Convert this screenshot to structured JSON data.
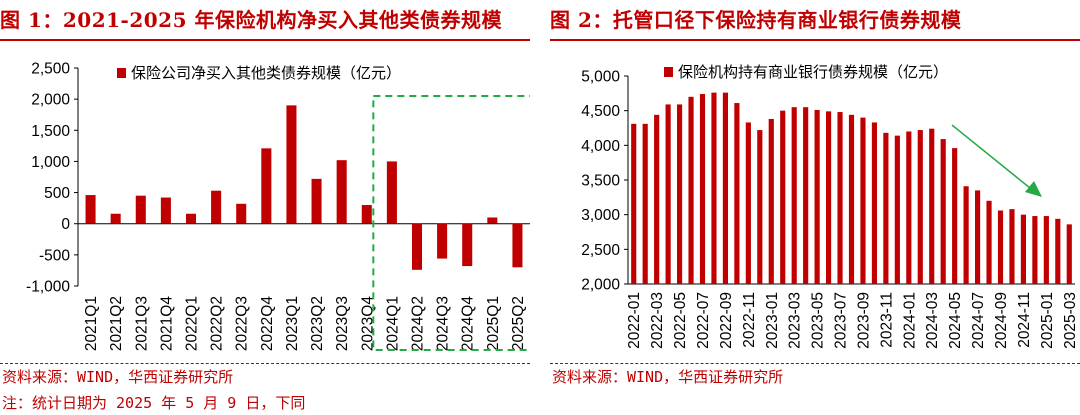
{
  "figures": [
    {
      "title": "图 1：2021-2025 年保险机构净买入其他类债券规模",
      "source": "资料来源：WIND，华西证券研究所",
      "note": "注：统计日期为 2025 年 5 月 9 日，下同"
    },
    {
      "title": "图 2：托管口径下保险持有商业银行债券规模",
      "source": "资料来源：WIND，华西证券研究所"
    }
  ],
  "colors": {
    "bar": "#c00000",
    "highlight_box": "#22aa44",
    "arrow": "#22aa44",
    "title": "#c00000"
  },
  "chart_data": [
    {
      "type": "bar",
      "legend": "保险公司净买入其他类债券规模（亿元）",
      "legend_position": "top",
      "categories": [
        "2021Q1",
        "2021Q2",
        "2021Q3",
        "2021Q4",
        "2022Q1",
        "2022Q2",
        "2022Q3",
        "2022Q4",
        "2023Q1",
        "2023Q2",
        "2023Q3",
        "2023Q4",
        "2024Q1",
        "2024Q2",
        "2024Q3",
        "2024Q4",
        "2025Q1",
        "2025Q2"
      ],
      "values": [
        460,
        160,
        450,
        420,
        160,
        530,
        320,
        1210,
        1900,
        720,
        1020,
        300,
        1000,
        -740,
        -560,
        -680,
        100,
        -700
      ],
      "ylim": [
        -1000,
        2500
      ],
      "yticks": [
        -1000,
        -500,
        0,
        500,
        1000,
        1500,
        2000,
        2500
      ],
      "ytick_labels": [
        "-1,000",
        "-500",
        "0",
        "500",
        "1,000",
        "1,500",
        "2,000",
        "2,500"
      ],
      "highlight_categories": [
        "2024Q1",
        "2025Q2"
      ],
      "grid": false
    },
    {
      "type": "bar",
      "legend": "保险机构持有商业银行债券规模（亿元）",
      "legend_position": "top",
      "x": [
        "2022-01",
        "2022-02",
        "2022-03",
        "2022-04",
        "2022-05",
        "2022-06",
        "2022-07",
        "2022-08",
        "2022-09",
        "2022-10",
        "2022-11",
        "2022-12",
        "2023-01",
        "2023-02",
        "2023-03",
        "2023-04",
        "2023-05",
        "2023-06",
        "2023-07",
        "2023-08",
        "2023-09",
        "2023-10",
        "2023-11",
        "2023-12",
        "2024-01",
        "2024-02",
        "2024-03",
        "2024-04",
        "2024-05",
        "2024-06",
        "2024-07",
        "2024-08",
        "2024-09",
        "2024-10",
        "2024-11",
        "2024-12",
        "2025-01",
        "2025-02",
        "2025-03"
      ],
      "tick_labels": [
        "2022-01",
        "2022-03",
        "2022-05",
        "2022-07",
        "2022-09",
        "2022-11",
        "2023-01",
        "2023-03",
        "2023-05",
        "2023-07",
        "2023-09",
        "2023-11",
        "2024-01",
        "2024-03",
        "2024-05",
        "2024-07",
        "2024-09",
        "2024-11",
        "2025-01",
        "2025-03"
      ],
      "values": [
        4310,
        4310,
        4440,
        4590,
        4590,
        4700,
        4740,
        4760,
        4760,
        4610,
        4330,
        4220,
        4380,
        4500,
        4550,
        4550,
        4510,
        4490,
        4480,
        4440,
        4400,
        4330,
        4180,
        4140,
        4200,
        4220,
        4240,
        4090,
        3960,
        3410,
        3350,
        3200,
        3060,
        3080,
        3000,
        2980,
        2980,
        2940,
        2860
      ],
      "ylim": [
        2000,
        5000
      ],
      "yticks": [
        2000,
        2500,
        3000,
        3500,
        4000,
        4500,
        5000
      ],
      "ytick_labels": [
        "2,000",
        "2,500",
        "3,000",
        "3,500",
        "4,000",
        "4,500",
        "5,000"
      ],
      "trend_arrow": "downward from 2024-04 to 2025-01",
      "grid": false
    }
  ]
}
